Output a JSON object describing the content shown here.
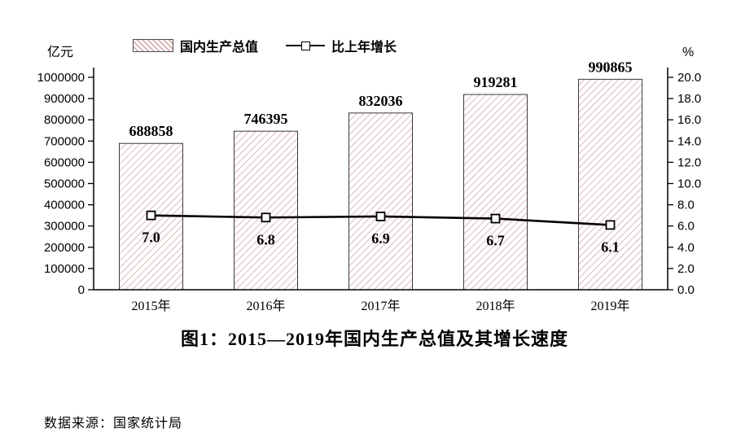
{
  "chart_data": {
    "type": "bar",
    "categories": [
      "2015年",
      "2016年",
      "2017年",
      "2018年",
      "2019年"
    ],
    "series": [
      {
        "name": "国内生产总值",
        "type": "bar",
        "axis": "left",
        "values": [
          688858,
          746395,
          832036,
          919281,
          990865
        ],
        "value_labels": [
          "688858",
          "746395",
          "832036",
          "919281",
          "990865"
        ]
      },
      {
        "name": "比上年增长",
        "type": "line",
        "axis": "right",
        "values": [
          7.0,
          6.8,
          6.9,
          6.7,
          6.1
        ],
        "value_labels": [
          "7.0",
          "6.8",
          "6.9",
          "6.7",
          "6.1"
        ]
      }
    ],
    "legend": [
      "国内生产总值",
      "比上年增长"
    ],
    "left_axis": {
      "label": "亿元",
      "min": 0,
      "max": 1000000,
      "step": 100000
    },
    "right_axis": {
      "label": "%",
      "min": 0,
      "max": 20,
      "step": 2
    },
    "title": "图1：2015—2019年国内生产总值及其增长速度",
    "source": "数据来源：国家统计局",
    "layout": {
      "grid": false,
      "legend_position": "top"
    },
    "colors": {
      "axis": "#000000",
      "text": "#000000",
      "bar_fill": "#ffffff",
      "bar_hatch": "#d9aeae",
      "bar_border": "#3a3a3a",
      "line": "#000000",
      "marker_fill": "#ffffff"
    }
  }
}
